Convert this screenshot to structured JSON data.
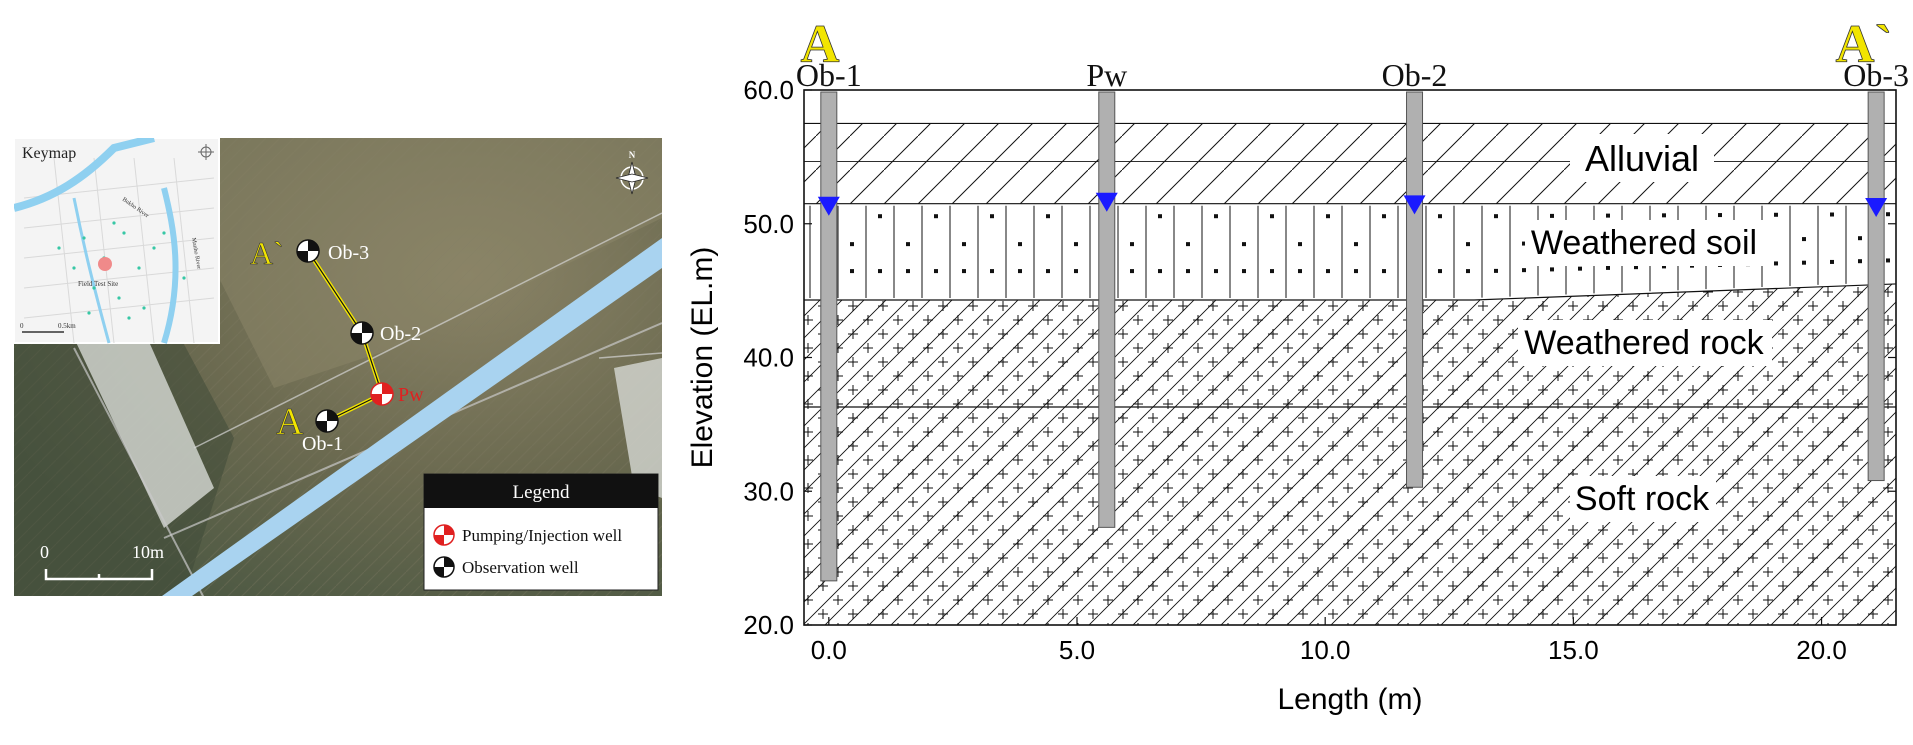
{
  "map": {
    "keymap_label": "Keymap",
    "keymap_river1": "Bukho River",
    "keymap_river2": "Manho River",
    "keymap_site": "Field Test Site",
    "keymap_scale_0": "0",
    "keymap_scale_1": "0.5km",
    "north_label": "N",
    "section_start": "A",
    "section_end": "A`",
    "wells": {
      "ob1": "Ob-1",
      "ob2": "Ob-2",
      "ob3": "Ob-3",
      "pw": "Pw"
    },
    "scale_0": "0",
    "scale_1": "10m",
    "legend": {
      "title": "Legend",
      "pumping": "Pumping/Injection well",
      "observation": "Observation well"
    },
    "colors": {
      "canal": "#a9d3f0",
      "pumping_well": "#e02020",
      "label_yellow": "#f2e500",
      "keymap_river": "#8fd0f0"
    }
  },
  "section": {
    "end_left": "A",
    "end_right": "A`",
    "wells": [
      "Ob-1",
      "Pw",
      "Ob-2",
      "Ob-3"
    ],
    "layers": {
      "alluvial": "Alluvial",
      "weathered_soil": "Weathered soil",
      "weathered_rock": "Weathered rock",
      "soft_rock": "Soft rock"
    },
    "water_table_color": "#1a1aff",
    "casing_color": "#b0b0b0"
  },
  "chart_data": {
    "type": "cross-section",
    "xlabel": "Length (m)",
    "ylabel": "Elevation (EL.m)",
    "xlim": [
      -0.5,
      21.5
    ],
    "ylim": [
      20,
      60
    ],
    "x_ticks": [
      "0.0",
      "5.0",
      "10.0",
      "15.0",
      "20.0"
    ],
    "y_ticks": [
      "20.0",
      "30.0",
      "40.0",
      "50.0",
      "60.0"
    ],
    "ground_surface": 57.5,
    "layer_boundaries": [
      {
        "name": "Alluvial / Weathered soil",
        "elevation": 51.5
      },
      {
        "name": "Weathered soil / Weathered rock",
        "x": [
          -0.5,
          13.0,
          21.5
        ],
        "elevation": [
          44.3,
          44.3,
          45.5
        ]
      },
      {
        "name": "Weathered rock / Soft rock",
        "elevation": 36.3
      }
    ],
    "wells": [
      {
        "name": "Ob-1",
        "x": 0.0,
        "bottom": 23.3,
        "water_level": 51.2
      },
      {
        "name": "Pw",
        "x": 5.6,
        "bottom": 27.3,
        "water_level": 51.5
      },
      {
        "name": "Ob-2",
        "x": 11.8,
        "bottom": 30.3,
        "water_level": 51.3
      },
      {
        "name": "Ob-3",
        "x": 21.1,
        "bottom": 30.8,
        "water_level": 51.1
      }
    ]
  }
}
